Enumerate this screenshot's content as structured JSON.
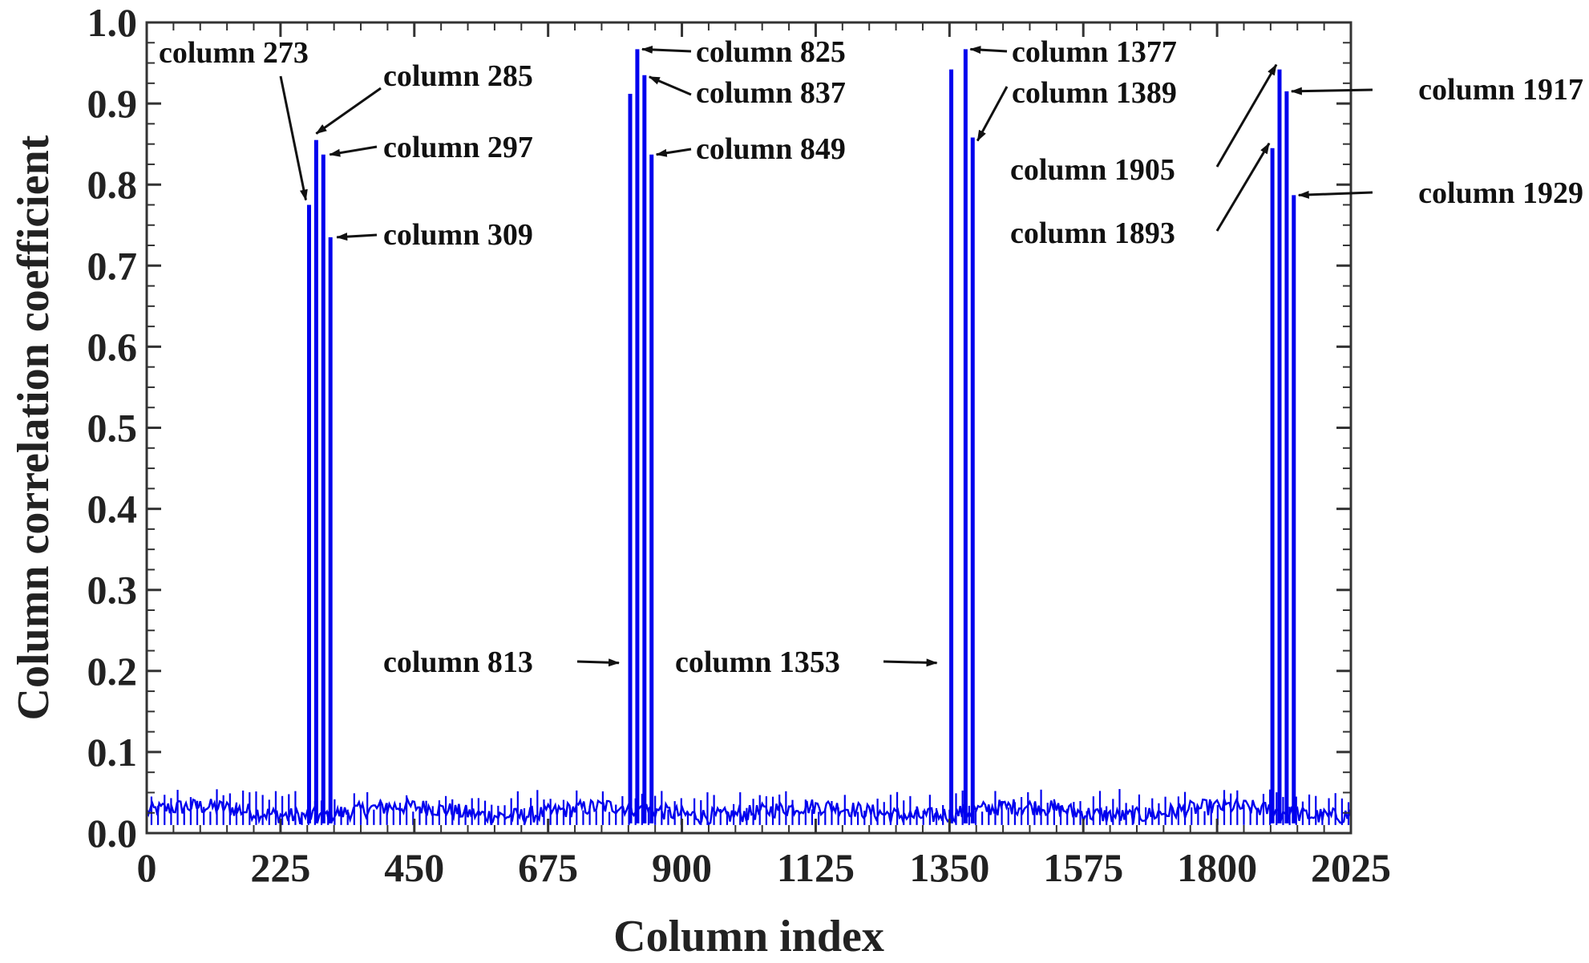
{
  "chart_data": {
    "type": "bar",
    "xlabel": "Column index",
    "ylabel": "Column correlation coefficient",
    "xlim": [
      0,
      2025
    ],
    "ylim": [
      0,
      1.0
    ],
    "xticks": [
      0,
      225,
      450,
      675,
      900,
      1125,
      1350,
      1575,
      1800,
      2025
    ],
    "yticks": [
      "0.0",
      "0.1",
      "0.2",
      "0.3",
      "0.4",
      "0.5",
      "0.6",
      "0.7",
      "0.8",
      "0.9",
      "1.0"
    ],
    "grid": false,
    "series_color": "#0000ee",
    "peaks": [
      {
        "x": 273,
        "y": 0.775
      },
      {
        "x": 285,
        "y": 0.855
      },
      {
        "x": 297,
        "y": 0.837
      },
      {
        "x": 309,
        "y": 0.735
      },
      {
        "x": 813,
        "y": 0.912
      },
      {
        "x": 825,
        "y": 0.967
      },
      {
        "x": 837,
        "y": 0.935
      },
      {
        "x": 849,
        "y": 0.837
      },
      {
        "x": 1353,
        "y": 0.942
      },
      {
        "x": 1377,
        "y": 0.967
      },
      {
        "x": 1389,
        "y": 0.858
      },
      {
        "x": 1893,
        "y": 0.845
      },
      {
        "x": 1905,
        "y": 0.942
      },
      {
        "x": 1917,
        "y": 0.915
      },
      {
        "x": 1929,
        "y": 0.787
      }
    ],
    "baseline_range": [
      0.01,
      0.055
    ],
    "annotations": [
      {
        "text": "column 273",
        "x": 273,
        "y": 0.775
      },
      {
        "text": "column 285",
        "x": 285,
        "y": 0.855
      },
      {
        "text": "column 297",
        "x": 297,
        "y": 0.837
      },
      {
        "text": "column 309",
        "x": 309,
        "y": 0.735
      },
      {
        "text": "column 825",
        "x": 825,
        "y": 0.967
      },
      {
        "text": "column 837",
        "x": 837,
        "y": 0.935
      },
      {
        "text": "column 849",
        "x": 849,
        "y": 0.837
      },
      {
        "text": "column 813",
        "x": 813,
        "y": 0.21
      },
      {
        "text": "column 1377",
        "x": 1377,
        "y": 0.967
      },
      {
        "text": "column 1389",
        "x": 1389,
        "y": 0.858
      },
      {
        "text": "column 1353",
        "x": 1353,
        "y": 0.21
      },
      {
        "text": "column 1917",
        "x": 1917,
        "y": 0.915
      },
      {
        "text": "column 1905",
        "x": 1905,
        "y": 0.942
      },
      {
        "text": "column 1893",
        "x": 1893,
        "y": 0.845
      },
      {
        "text": "column 1929",
        "x": 1929,
        "y": 0.787
      }
    ]
  }
}
